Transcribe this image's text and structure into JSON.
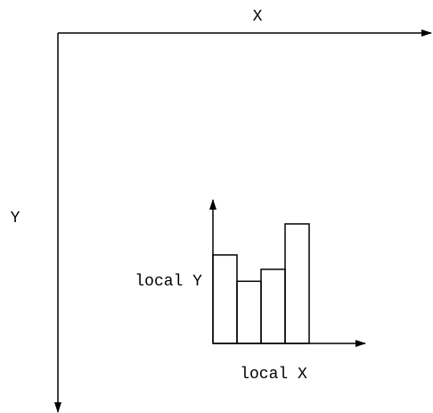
{
  "labels": {
    "global_x": "X",
    "global_y": "Y",
    "local_x": "local X",
    "local_y": "local Y"
  },
  "histogram": {
    "values": [
      0.74,
      0.52,
      0.62,
      1.0
    ]
  },
  "colors": {
    "stroke": "#000000",
    "background": "#ffffff"
  }
}
